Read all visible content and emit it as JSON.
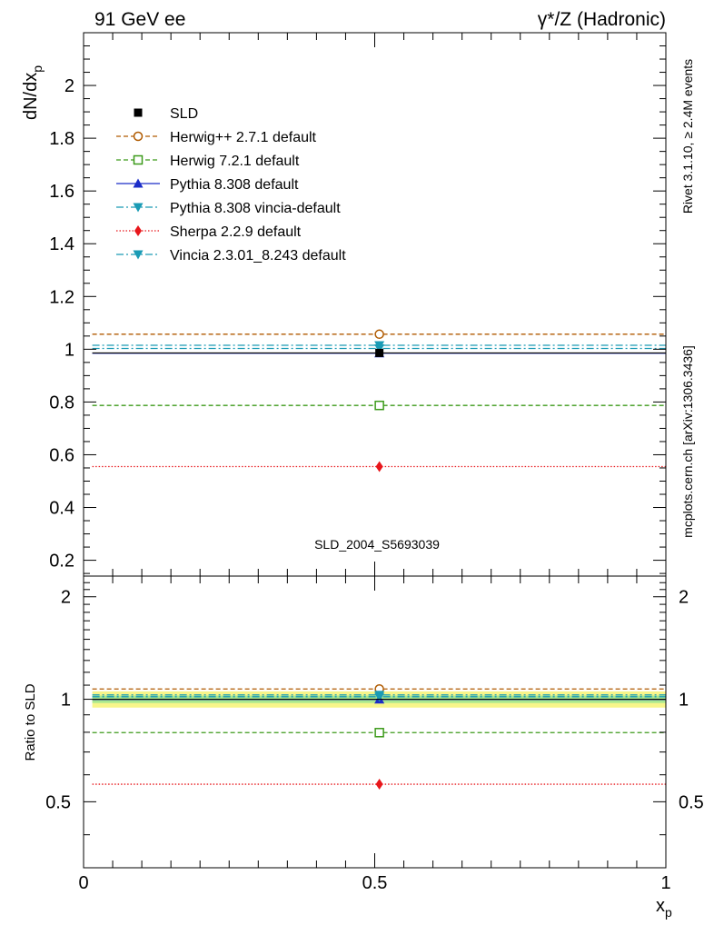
{
  "header": {
    "left": "91 GeV ee",
    "right": "γ*/Z (Hadronic)"
  },
  "side_labels": {
    "rivet": "Rivet 3.1.10, ≥ 2.4M events",
    "mcplots": "mcplots.cern.ch [arXiv:1306.3436]"
  },
  "chart_data": {
    "type": "line",
    "analysis_label": "SLD_2004_S5693039",
    "xlabel_base": "x",
    "xlabel_sub": "p",
    "ylabel_base": "dN/dx",
    "ylabel_sub": "p",
    "ratio_ylabel": "Ratio to SLD",
    "xlim": [
      0,
      1
    ],
    "ylim": [
      0.14,
      2.2
    ],
    "ratio_ylim": [
      0.32,
      2.3
    ],
    "x_tick_labels": [
      "0",
      "0.5",
      "1"
    ],
    "y_tick_labels": [
      "0.2",
      "0.4",
      "0.6",
      "0.8",
      "1",
      "1.2",
      "1.4",
      "1.6",
      "1.8",
      "2"
    ],
    "ratio_tick_labels": [
      "0.5",
      "1",
      "2"
    ],
    "bin": [
      0.015,
      1.0
    ],
    "x_center": 0.508,
    "legend_position": "top-left",
    "data": {
      "name": "SLD",
      "x": 0.508,
      "y": 0.986,
      "ratio": 1.0,
      "color": "#000000"
    },
    "ratio_band": {
      "inner": [
        0.975,
        1.025
      ],
      "outer": [
        0.945,
        1.055
      ],
      "inner_color": "#a9e890",
      "outer_color": "#f7f58a"
    },
    "series": [
      {
        "name": "Herwig++ 2.7.1 default",
        "y": 1.057,
        "ratio": 1.072,
        "color": "#b05a00",
        "dash": "5,3",
        "marker": "circle-open"
      },
      {
        "name": "Herwig 7.2.1 default",
        "y": 0.787,
        "ratio": 0.798,
        "color": "#3c9a1a",
        "dash": "5,3",
        "marker": "square-open"
      },
      {
        "name": "Pythia 8.308 default",
        "y": 0.985,
        "ratio": 0.999,
        "color": "#1a2cc8",
        "dash": "",
        "marker": "triangle-up"
      },
      {
        "name": "Pythia 8.308 vincia-default",
        "y": 1.003,
        "ratio": 1.017,
        "color": "#1a9bb5",
        "dash": "8,3,2,3",
        "marker": "triangle-down"
      },
      {
        "name": "Sherpa 2.2.9 default",
        "y": 0.555,
        "ratio": 0.563,
        "color": "#e8161b",
        "dash": "1.5,2",
        "marker": "diamond"
      },
      {
        "name": "Vincia 2.3.01_8.243 default",
        "y": 1.015,
        "ratio": 1.03,
        "color": "#1a9bb5",
        "dash": "8,3,2,3",
        "marker": "triangle-down"
      }
    ]
  }
}
